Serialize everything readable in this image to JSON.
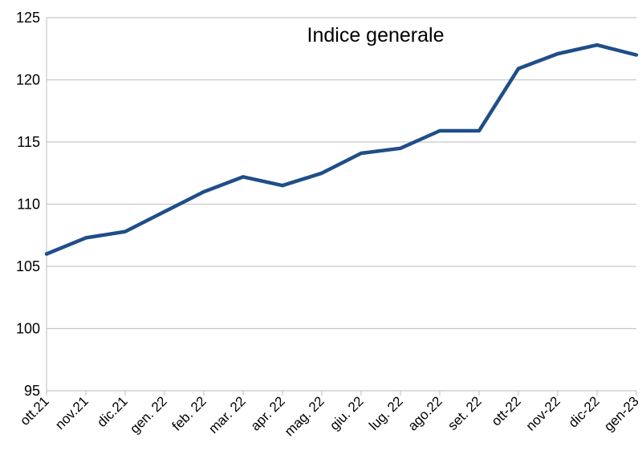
{
  "chart_data": {
    "type": "line",
    "title": "Indice generale",
    "xlabel": "",
    "ylabel": "",
    "categories": [
      "ott.21",
      "nov.21",
      "dic.21",
      "gen. 22",
      "feb. 22",
      "mar. 22",
      "apr. 22",
      "mag. 22",
      "giu. 22",
      "lug. 22",
      "ago.22",
      "set. 22",
      "ott-22",
      "nov-22",
      "dic-22",
      "gen-23"
    ],
    "series": [
      {
        "values": [
          106.0,
          107.3,
          107.8,
          109.4,
          111.0,
          112.2,
          111.5,
          112.5,
          114.1,
          114.5,
          115.9,
          115.9,
          120.9,
          122.1,
          122.8,
          122.0
        ]
      }
    ],
    "ylim": [
      95,
      125
    ],
    "yticks": [
      95,
      100,
      105,
      110,
      115,
      120,
      125
    ],
    "grid": true,
    "legend": "none",
    "line_color": "#1f4e89",
    "grid_color": "#c8c8c8"
  }
}
